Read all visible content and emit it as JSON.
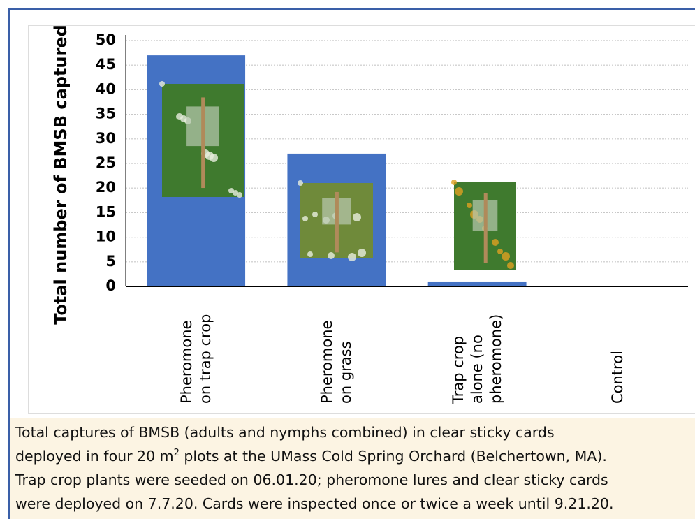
{
  "chart_data": {
    "type": "bar",
    "y_axis_label": "Total number of BMSB captured",
    "categories": [
      "Pheromone on trap crop",
      "Pheromone on grass",
      "Trap crop alone (no pheromone)",
      "Control"
    ],
    "values": [
      47,
      27,
      1,
      0
    ],
    "color": "#4472c4",
    "ylim": [
      0,
      50
    ],
    "yticks": [
      0,
      5,
      10,
      15,
      20,
      25,
      30,
      35,
      40,
      45,
      50
    ],
    "grid": true
  },
  "caption": {
    "lines": [
      [
        "Total captures of BMSB (adults and nymphs combined) in clear sticky cards"
      ],
      [
        "deployed in four 20 m",
        "2",
        " plots at the UMass Cold Spring Orchard (Belchertown, MA)."
      ],
      [
        "Trap crop plants were seeded on 06.01.20; pheromone  lures and clear sticky cards"
      ],
      [
        "were deployed on 7.7.20. Cards were inspected once or twice a week until 9.21.20."
      ]
    ]
  }
}
